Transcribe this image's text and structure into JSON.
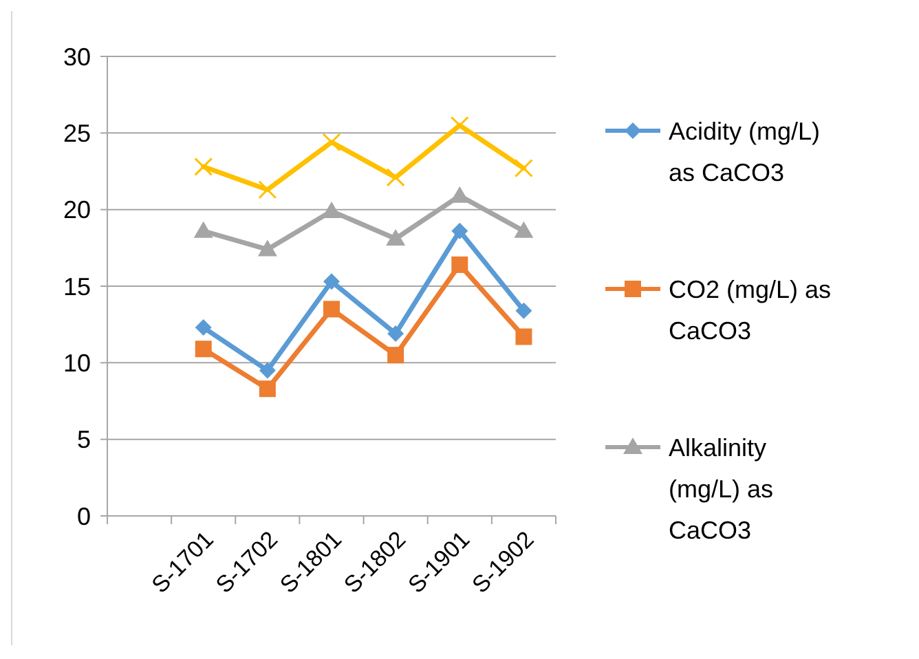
{
  "chart_data": {
    "type": "line",
    "categories": [
      null,
      "S-1701",
      "S-1702",
      "S-1801",
      "S-1802",
      "S-1901",
      "S-1902"
    ],
    "series": [
      {
        "name": "Acidity (mg/L) as CaCO3",
        "color": "#5b9bd5",
        "marker": "diamond",
        "values": [
          null,
          12.3,
          9.5,
          15.3,
          11.9,
          18.6,
          13.4
        ]
      },
      {
        "name": "CO2 (mg/L) as CaCO3",
        "color": "#ed7d31",
        "marker": "square",
        "values": [
          null,
          10.9,
          8.3,
          13.5,
          10.5,
          16.4,
          11.7
        ]
      },
      {
        "name": "Alkalinity (mg/L) as CaCO3",
        "color": "#a5a5a5",
        "marker": "triangle",
        "values": [
          null,
          18.6,
          17.4,
          19.9,
          18.1,
          20.9,
          18.6
        ]
      },
      {
        "color": "#ffc000",
        "marker": "cross",
        "values": [
          null,
          22.8,
          21.3,
          24.4,
          22.1,
          25.5,
          22.7
        ]
      }
    ],
    "ylim": [
      0,
      30
    ],
    "yticks": [
      0,
      5,
      10,
      15,
      20,
      25,
      30
    ],
    "grid": "y",
    "legend": "right",
    "line_style": "solid"
  }
}
